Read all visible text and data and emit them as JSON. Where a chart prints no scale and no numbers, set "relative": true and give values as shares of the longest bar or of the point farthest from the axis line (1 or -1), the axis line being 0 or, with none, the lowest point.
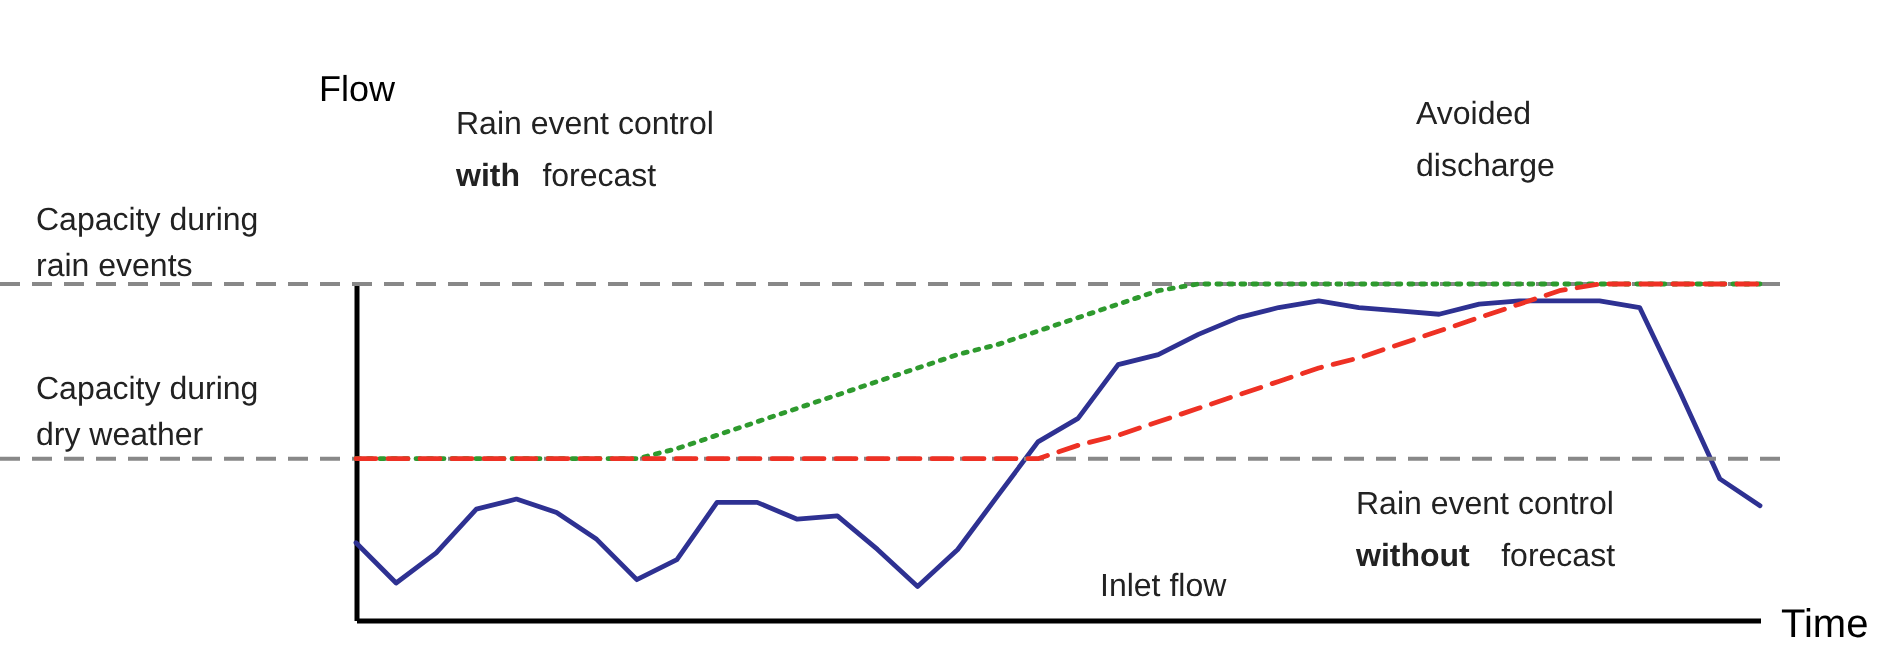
{
  "chart_data": {
    "type": "line",
    "relative": true,
    "xlabel": "Time",
    "ylabel": "Flow",
    "categories": [
      null,
      null,
      null,
      null,
      null,
      null,
      null,
      null,
      null,
      null,
      null,
      null,
      null,
      null,
      null,
      null,
      null,
      null,
      null,
      null,
      null,
      null,
      null,
      null,
      null,
      null,
      null,
      null,
      null,
      null,
      null,
      null,
      null,
      null,
      null,
      null
    ],
    "series": [
      {
        "color": "#2e3192",
        "line_style": "solid",
        "values": [
          0.23,
          0.11,
          0.2,
          0.33,
          0.36,
          0.32,
          0.24,
          0.12,
          0.18,
          0.35,
          0.35,
          0.3,
          0.31,
          0.21,
          0.1,
          0.21,
          0.37,
          0.53,
          0.6,
          0.76,
          0.79,
          0.85,
          0.9,
          0.93,
          0.95,
          0.93,
          0.92,
          0.91,
          0.94,
          0.95,
          0.95,
          0.95,
          0.93,
          0.68,
          0.42,
          0.34
        ]
      },
      {
        "color": "#2e9a2e",
        "line_style": "dotted",
        "values": [
          0.48,
          0.48,
          0.48,
          0.48,
          0.48,
          0.48,
          0.48,
          0.48,
          0.51,
          0.55,
          0.59,
          0.63,
          0.67,
          0.71,
          0.75,
          0.79,
          0.82,
          0.86,
          0.9,
          0.94,
          0.98,
          1,
          1,
          1,
          1,
          1,
          1,
          1,
          1,
          1,
          1,
          1,
          1,
          1,
          1,
          1
        ]
      },
      {
        "color": "#ee3124",
        "line_style": "dashed",
        "values": [
          0.48,
          0.48,
          0.48,
          0.48,
          0.48,
          0.48,
          0.48,
          0.48,
          0.48,
          0.48,
          0.48,
          0.48,
          0.48,
          0.48,
          0.48,
          0.48,
          0.48,
          0.48,
          0.52,
          0.55,
          0.59,
          0.63,
          0.67,
          0.71,
          0.75,
          0.78,
          0.82,
          0.86,
          0.9,
          0.94,
          0.98,
          1,
          1,
          1,
          1,
          1
        ]
      }
    ],
    "ref_lines": [
      {
        "axis": "y",
        "value": 1,
        "label": "Capacity during rain events",
        "color": "#888888",
        "line_style": "dashed"
      },
      {
        "axis": "y",
        "value": 0.48,
        "label": "Capacity during dry weather",
        "color": "#888888",
        "line_style": "dashed"
      }
    ],
    "annotations": [
      "Rain event control with forecast",
      "Avoided discharge",
      "Rain event control without forecast",
      "Inlet flow"
    ]
  }
}
